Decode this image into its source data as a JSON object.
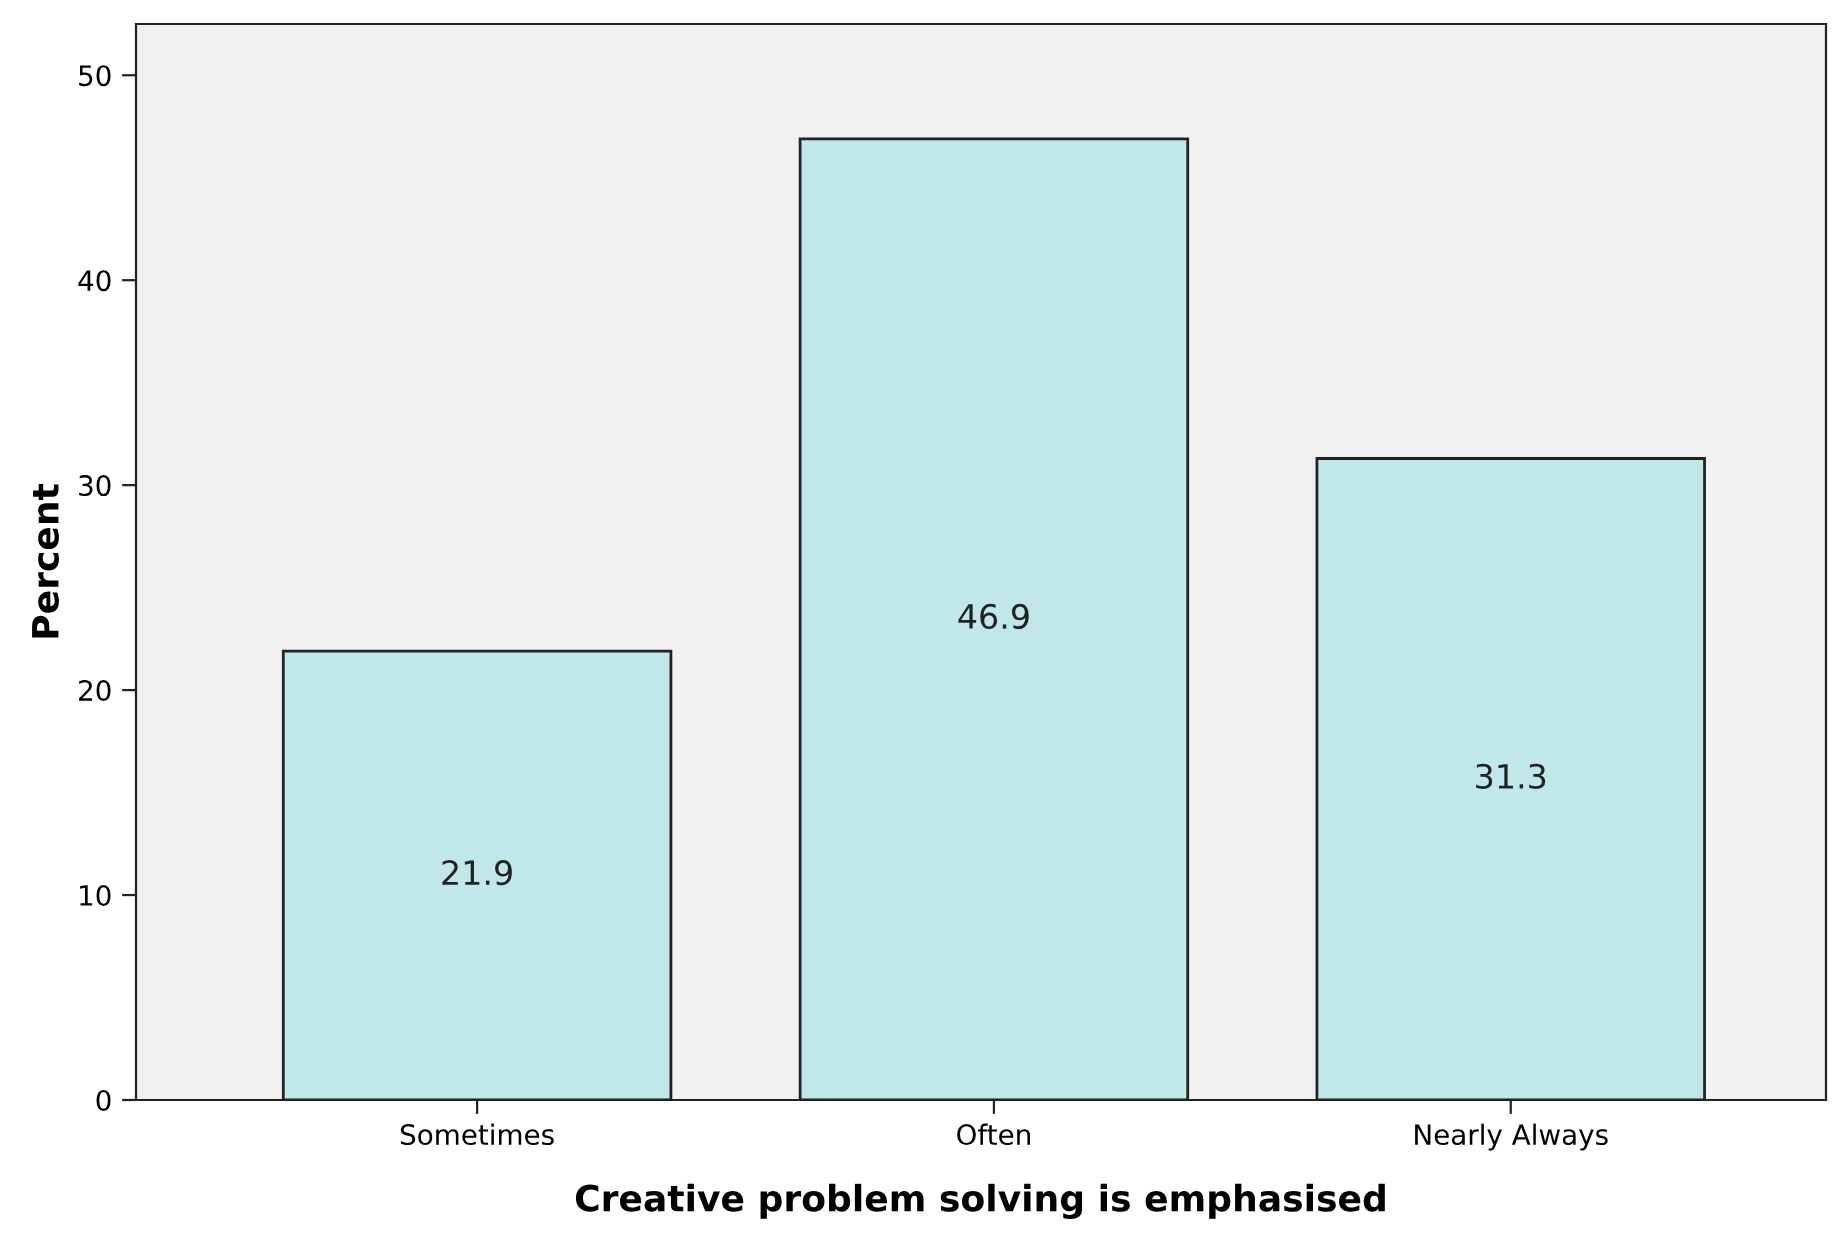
{
  "chart_data": {
    "type": "bar",
    "xlabel": "Creative problem solving is emphasised",
    "ylabel": "Percent",
    "categories": [
      "Sometimes",
      "Often",
      "Nearly Always"
    ],
    "values": [
      21.9,
      46.9,
      31.3
    ],
    "color": "#c0e8ea",
    "ylim": [
      0,
      52.5
    ],
    "yticks": [
      0,
      10,
      20,
      30,
      40,
      50
    ],
    "grid": false,
    "data_labels": true
  }
}
